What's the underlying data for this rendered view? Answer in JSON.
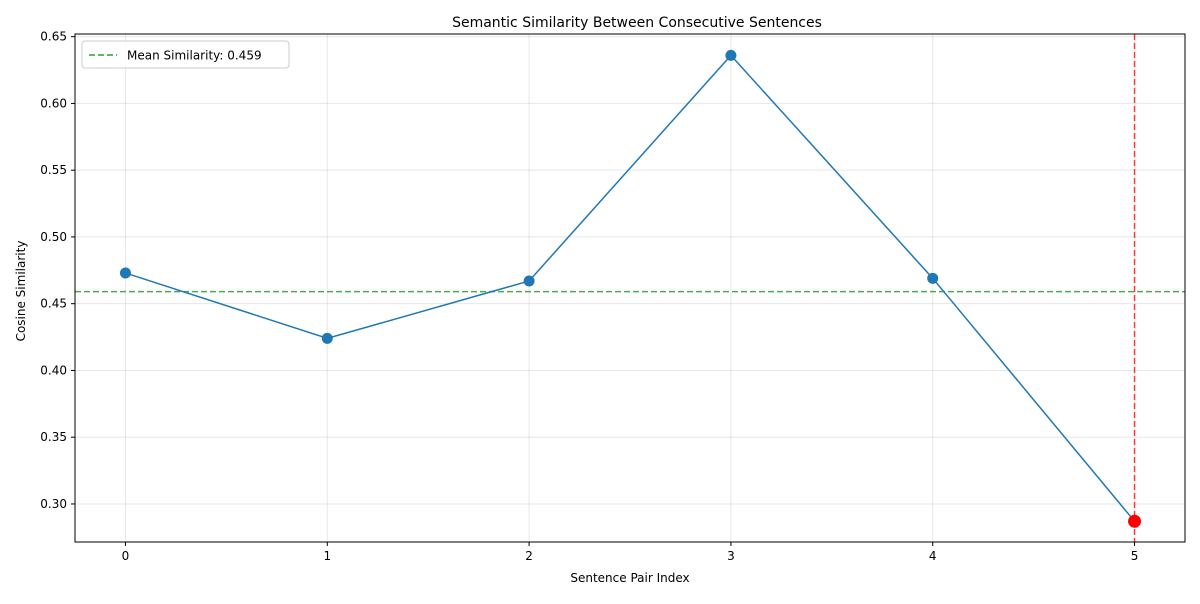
{
  "chart_data": {
    "type": "line",
    "title": "Semantic Similarity Between Consecutive Sentences",
    "xlabel": "Sentence Pair Index",
    "ylabel": "Cosine Similarity",
    "x": [
      0,
      1,
      2,
      3,
      4,
      5
    ],
    "series": [
      {
        "values": [
          0.473,
          0.424,
          0.467,
          0.636,
          0.469,
          0.287
        ],
        "color": "#1f77b4"
      }
    ],
    "xlim": [
      -0.25,
      5.25
    ],
    "ylim": [
      0.2715,
      0.652
    ],
    "xticks": [
      0,
      1,
      2,
      3,
      4,
      5
    ],
    "xtick_labels": [
      "0",
      "1",
      "2",
      "3",
      "4",
      "5"
    ],
    "yticks": [
      0.3,
      0.35,
      0.4,
      0.45,
      0.5,
      0.55,
      0.6,
      0.65
    ],
    "ytick_labels": [
      "0.30",
      "0.35",
      "0.40",
      "0.45",
      "0.50",
      "0.55",
      "0.60",
      "0.65"
    ],
    "grid": true,
    "mean_line": {
      "value": 0.459,
      "label": "Mean Similarity: 0.459",
      "color": "#2ca02c",
      "style": "dashed"
    },
    "highlight": {
      "x": 5,
      "y": 0.287,
      "color": "#ff0000",
      "vline_color": "#ff0000",
      "vline_style": "dashed"
    },
    "legend": {
      "placement": "top-left",
      "entries": [
        "Mean Similarity: 0.459"
      ]
    }
  }
}
